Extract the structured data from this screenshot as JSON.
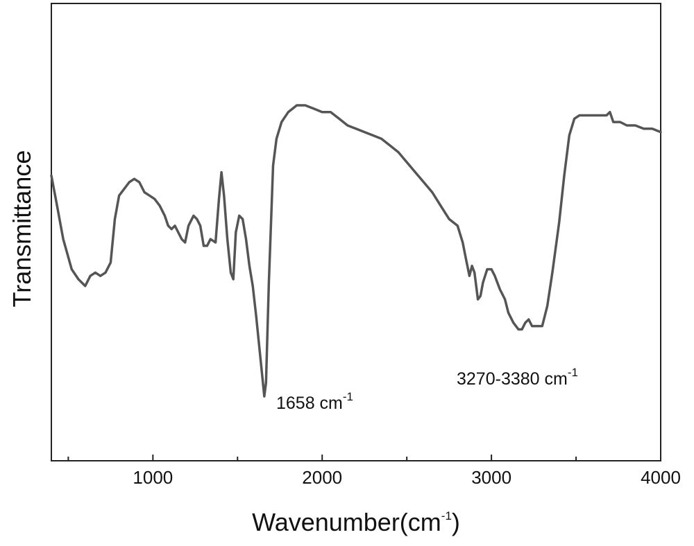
{
  "chart_data": {
    "type": "line",
    "xlabel": "Wavenumber(cm",
    "xlabel_sup": "-1",
    "xlabel_close": ")",
    "ylabel": "Transmittance",
    "xlim": [
      400,
      4000
    ],
    "ylim": [
      0,
      100
    ],
    "x_ticks": [
      1000,
      2000,
      3000,
      4000
    ],
    "x_tick_labels": [
      "1000",
      "2000",
      "3000",
      "4000"
    ],
    "y_ticks_shown": false,
    "grid": false,
    "line_color": "#555555",
    "series": [
      {
        "points": [
          [
            400,
            77
          ],
          [
            430,
            69
          ],
          [
            470,
            58
          ],
          [
            520,
            49
          ],
          [
            560,
            46
          ],
          [
            600,
            44
          ],
          [
            630,
            47
          ],
          [
            660,
            48
          ],
          [
            690,
            47
          ],
          [
            720,
            48
          ],
          [
            750,
            51
          ],
          [
            775,
            64
          ],
          [
            800,
            71
          ],
          [
            830,
            73
          ],
          [
            860,
            75
          ],
          [
            890,
            76
          ],
          [
            920,
            75
          ],
          [
            950,
            72
          ],
          [
            980,
            71
          ],
          [
            1010,
            70
          ],
          [
            1040,
            68
          ],
          [
            1070,
            65
          ],
          [
            1090,
            62
          ],
          [
            1110,
            61
          ],
          [
            1130,
            62
          ],
          [
            1150,
            60
          ],
          [
            1170,
            58
          ],
          [
            1190,
            57
          ],
          [
            1210,
            62
          ],
          [
            1240,
            65
          ],
          [
            1260,
            64
          ],
          [
            1280,
            62
          ],
          [
            1300,
            56
          ],
          [
            1320,
            56
          ],
          [
            1340,
            58
          ],
          [
            1370,
            57
          ],
          [
            1390,
            70
          ],
          [
            1405,
            78
          ],
          [
            1420,
            71
          ],
          [
            1440,
            58
          ],
          [
            1460,
            48
          ],
          [
            1475,
            46
          ],
          [
            1490,
            60
          ],
          [
            1510,
            65
          ],
          [
            1530,
            64
          ],
          [
            1550,
            58
          ],
          [
            1570,
            50
          ],
          [
            1590,
            44
          ],
          [
            1610,
            35
          ],
          [
            1630,
            25
          ],
          [
            1650,
            15
          ],
          [
            1658,
            11
          ],
          [
            1668,
            15
          ],
          [
            1685,
            45
          ],
          [
            1710,
            80
          ],
          [
            1730,
            88
          ],
          [
            1760,
            93
          ],
          [
            1800,
            96
          ],
          [
            1850,
            98
          ],
          [
            1900,
            98
          ],
          [
            1950,
            97
          ],
          [
            2000,
            96
          ],
          [
            2050,
            96
          ],
          [
            2100,
            94
          ],
          [
            2150,
            92
          ],
          [
            2200,
            91
          ],
          [
            2250,
            90
          ],
          [
            2300,
            89
          ],
          [
            2350,
            88
          ],
          [
            2400,
            86
          ],
          [
            2450,
            84
          ],
          [
            2500,
            81
          ],
          [
            2550,
            78
          ],
          [
            2600,
            75
          ],
          [
            2650,
            72
          ],
          [
            2700,
            68
          ],
          [
            2750,
            64
          ],
          [
            2800,
            62
          ],
          [
            2830,
            57
          ],
          [
            2850,
            52
          ],
          [
            2870,
            47
          ],
          [
            2885,
            50
          ],
          [
            2900,
            48
          ],
          [
            2920,
            40
          ],
          [
            2935,
            41
          ],
          [
            2950,
            45
          ],
          [
            2975,
            49
          ],
          [
            3000,
            49
          ],
          [
            3020,
            47
          ],
          [
            3050,
            43
          ],
          [
            3080,
            40
          ],
          [
            3100,
            36
          ],
          [
            3130,
            33
          ],
          [
            3160,
            31
          ],
          [
            3180,
            31
          ],
          [
            3200,
            33
          ],
          [
            3220,
            34
          ],
          [
            3240,
            32
          ],
          [
            3270,
            32
          ],
          [
            3300,
            32
          ],
          [
            3330,
            38
          ],
          [
            3360,
            48
          ],
          [
            3400,
            63
          ],
          [
            3430,
            77
          ],
          [
            3460,
            89
          ],
          [
            3490,
            94
          ],
          [
            3520,
            95
          ],
          [
            3560,
            95
          ],
          [
            3600,
            95
          ],
          [
            3640,
            95
          ],
          [
            3680,
            95
          ],
          [
            3700,
            96
          ],
          [
            3720,
            93
          ],
          [
            3760,
            93
          ],
          [
            3800,
            92
          ],
          [
            3850,
            92
          ],
          [
            3900,
            91
          ],
          [
            3950,
            91
          ],
          [
            4000,
            90
          ]
        ]
      }
    ],
    "annotations": [
      {
        "text": "1658 cm",
        "sup": "-1"
      },
      {
        "text": "3270-3380 cm",
        "sup": "-1"
      }
    ]
  }
}
